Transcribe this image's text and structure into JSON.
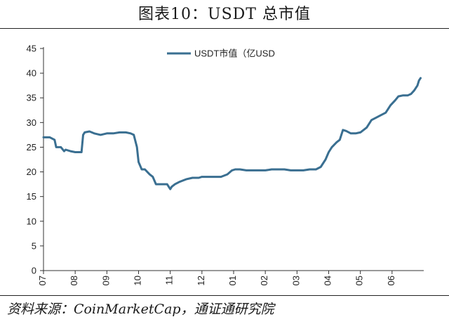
{
  "figure_title": "图表10：USDT 总市值",
  "source": "资料来源：CoinMarketCap，通证通研究院",
  "chart_data": {
    "type": "line",
    "title": "",
    "xlabel": "",
    "ylabel": "",
    "ylim": [
      0,
      45
    ],
    "yticks": [
      0,
      5,
      10,
      15,
      20,
      25,
      30,
      35,
      40,
      45
    ],
    "xlim": [
      0,
      12
    ],
    "xticks": [
      {
        "label": "07",
        "x": 0
      },
      {
        "label": "08",
        "x": 1
      },
      {
        "label": "09",
        "x": 2
      },
      {
        "label": "10",
        "x": 3
      },
      {
        "label": "11",
        "x": 4
      },
      {
        "label": "12",
        "x": 5
      },
      {
        "label": "01",
        "x": 6
      },
      {
        "label": "02",
        "x": 7
      },
      {
        "label": "03",
        "x": 8
      },
      {
        "label": "04",
        "x": 9
      },
      {
        "label": "05",
        "x": 10
      },
      {
        "label": "06",
        "x": 11
      }
    ],
    "grid": false,
    "legend_position": "top-center",
    "series": [
      {
        "name": "USDT市值（亿USD",
        "color": "#3a6f91",
        "x": [
          0,
          0.2,
          0.35,
          0.4,
          0.55,
          0.65,
          0.7,
          0.85,
          1.0,
          1.2,
          1.25,
          1.3,
          1.45,
          1.6,
          1.8,
          2.0,
          2.2,
          2.4,
          2.6,
          2.75,
          2.85,
          2.95,
          3.0,
          3.1,
          3.2,
          3.35,
          3.45,
          3.55,
          3.7,
          3.9,
          4.0,
          4.05,
          4.15,
          4.3,
          4.5,
          4.7,
          4.9,
          5.0,
          5.2,
          5.4,
          5.6,
          5.8,
          5.95,
          6.05,
          6.2,
          6.4,
          6.6,
          6.8,
          7.0,
          7.2,
          7.4,
          7.6,
          7.8,
          7.9,
          8.0,
          8.2,
          8.4,
          8.6,
          8.75,
          8.9,
          9.0,
          9.1,
          9.25,
          9.35,
          9.45,
          9.55,
          9.7,
          9.85,
          10.0,
          10.1,
          10.2,
          10.35,
          10.5,
          10.65,
          10.8,
          10.95,
          11.1,
          11.2,
          11.35,
          11.5,
          11.6,
          11.7,
          11.8,
          11.85,
          11.9
        ],
        "values": [
          27.0,
          27.0,
          26.5,
          25.0,
          25.0,
          24.2,
          24.5,
          24.2,
          24.0,
          24.0,
          27.5,
          28.0,
          28.2,
          27.8,
          27.5,
          27.8,
          27.8,
          28.0,
          28.0,
          27.8,
          27.5,
          25.0,
          22.0,
          20.5,
          20.5,
          19.5,
          19.0,
          17.5,
          17.5,
          17.5,
          16.5,
          17.0,
          17.5,
          18.0,
          18.5,
          18.8,
          18.8,
          19.0,
          19.0,
          19.0,
          19.0,
          19.5,
          20.3,
          20.5,
          20.5,
          20.3,
          20.3,
          20.3,
          20.3,
          20.5,
          20.5,
          20.5,
          20.3,
          20.3,
          20.3,
          20.3,
          20.5,
          20.5,
          21.0,
          22.5,
          24.0,
          25.0,
          26.0,
          26.5,
          28.5,
          28.3,
          27.8,
          27.8,
          28.0,
          28.5,
          29.0,
          30.5,
          31.0,
          31.5,
          32.0,
          33.5,
          34.5,
          35.3,
          35.5,
          35.5,
          35.8,
          36.5,
          37.5,
          38.5,
          39.0
        ]
      }
    ]
  }
}
